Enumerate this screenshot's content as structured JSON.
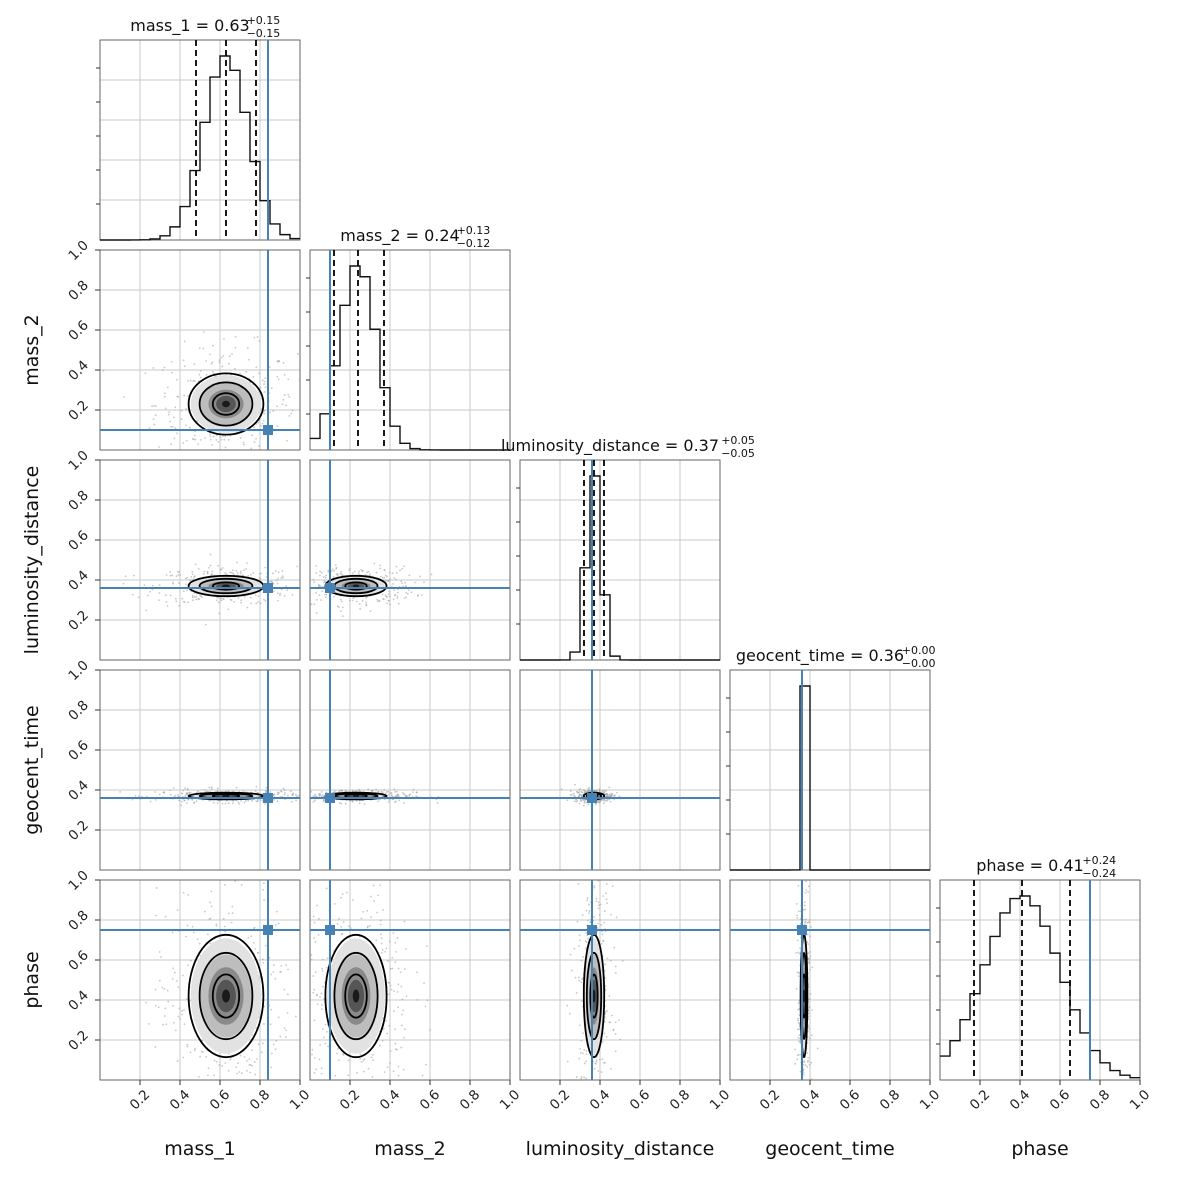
{
  "chart_data": {
    "type": "corner",
    "parameters": [
      "mass_1",
      "mass_2",
      "luminosity_distance",
      "geocent_time",
      "phase"
    ],
    "axis_range": [
      0,
      1
    ],
    "tick_values": [
      0.2,
      0.4,
      0.6,
      0.8,
      1.0
    ],
    "tick_labels": [
      "0.2",
      "0.4",
      "0.6",
      "0.8",
      "1.0"
    ],
    "grid": true,
    "colors": {
      "truth": "#4682b4",
      "hist": "#111111",
      "contour": "#000000",
      "scatter": "#9a9a9a",
      "grid": "#c8c8c8"
    },
    "truths": {
      "mass_1": 0.84,
      "mass_2": 0.1,
      "luminosity_distance": 0.36,
      "geocent_time": 0.36,
      "phase": 0.75
    },
    "titles": [
      {
        "param": "mass_1",
        "text": "mass_1 = 0.63",
        "plus": "+0.15",
        "minus": "−0.15"
      },
      {
        "param": "mass_2",
        "text": "mass_2 = 0.24",
        "plus": "+0.13",
        "minus": "−0.12"
      },
      {
        "param": "luminosity_distance",
        "text": "luminosity_distance = 0.37",
        "plus": "+0.05",
        "minus": "−0.05"
      },
      {
        "param": "geocent_time",
        "text": "geocent_time = 0.36",
        "plus": "+0.00",
        "minus": "−0.00"
      },
      {
        "param": "phase",
        "text": "phase = 0.41",
        "plus": "+0.24",
        "minus": "−0.24"
      }
    ],
    "marginals": {
      "mass_1": {
        "median": 0.63,
        "low": 0.48,
        "high": 0.78,
        "std": 0.11,
        "bins": 20
      },
      "mass_2": {
        "median": 0.24,
        "low": 0.12,
        "high": 0.37,
        "std": 0.09,
        "bins": 20
      },
      "luminosity_distance": {
        "median": 0.37,
        "low": 0.32,
        "high": 0.42,
        "std": 0.035,
        "bins": 20
      },
      "geocent_time": {
        "median": 0.36,
        "low": 0.36,
        "high": 0.36,
        "std": 0.003,
        "bins": 20
      },
      "phase": {
        "median": 0.41,
        "low": 0.17,
        "high": 0.65,
        "std": 0.19,
        "bins": 20
      }
    },
    "joint_centers": {
      "mass_1": 0.63,
      "mass_2": 0.23,
      "luminosity_distance": 0.37,
      "geocent_time": 0.37,
      "phase": 0.42
    },
    "joint_spreads": {
      "mass_1": 0.11,
      "mass_2": 0.09,
      "luminosity_distance": 0.03,
      "geocent_time": 0.01,
      "phase": 0.18
    }
  }
}
